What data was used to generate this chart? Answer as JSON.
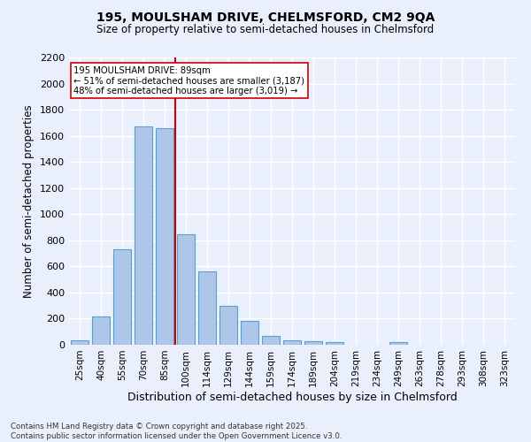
{
  "title1": "195, MOULSHAM DRIVE, CHELMSFORD, CM2 9QA",
  "title2": "Size of property relative to semi-detached houses in Chelmsford",
  "xlabel": "Distribution of semi-detached houses by size in Chelmsford",
  "ylabel": "Number of semi-detached properties",
  "footer1": "Contains HM Land Registry data © Crown copyright and database right 2025.",
  "footer2": "Contains public sector information licensed under the Open Government Licence v3.0.",
  "bar_labels": [
    "25sqm",
    "40sqm",
    "55sqm",
    "70sqm",
    "85sqm",
    "100sqm",
    "114sqm",
    "129sqm",
    "144sqm",
    "159sqm",
    "174sqm",
    "189sqm",
    "204sqm",
    "219sqm",
    "234sqm",
    "249sqm",
    "263sqm",
    "278sqm",
    "293sqm",
    "308sqm",
    "323sqm"
  ],
  "bar_values": [
    35,
    220,
    730,
    1670,
    1660,
    845,
    560,
    295,
    180,
    70,
    35,
    25,
    20,
    0,
    0,
    20,
    0,
    0,
    0,
    0,
    0
  ],
  "bar_color": "#aec6e8",
  "bar_edge_color": "#5a9fd4",
  "bg_color": "#eaf0fb",
  "grid_color": "#ffffff",
  "vline_color": "#cc0000",
  "annotation_title": "195 MOULSHAM DRIVE: 89sqm",
  "annotation_line1": "← 51% of semi-detached houses are smaller (3,187)",
  "annotation_line2": "48% of semi-detached houses are larger (3,019) →",
  "ylim": [
    0,
    2200
  ],
  "yticks": [
    0,
    200,
    400,
    600,
    800,
    1000,
    1200,
    1400,
    1600,
    1800,
    2000,
    2200
  ],
  "vline_bar_index": 4.5
}
